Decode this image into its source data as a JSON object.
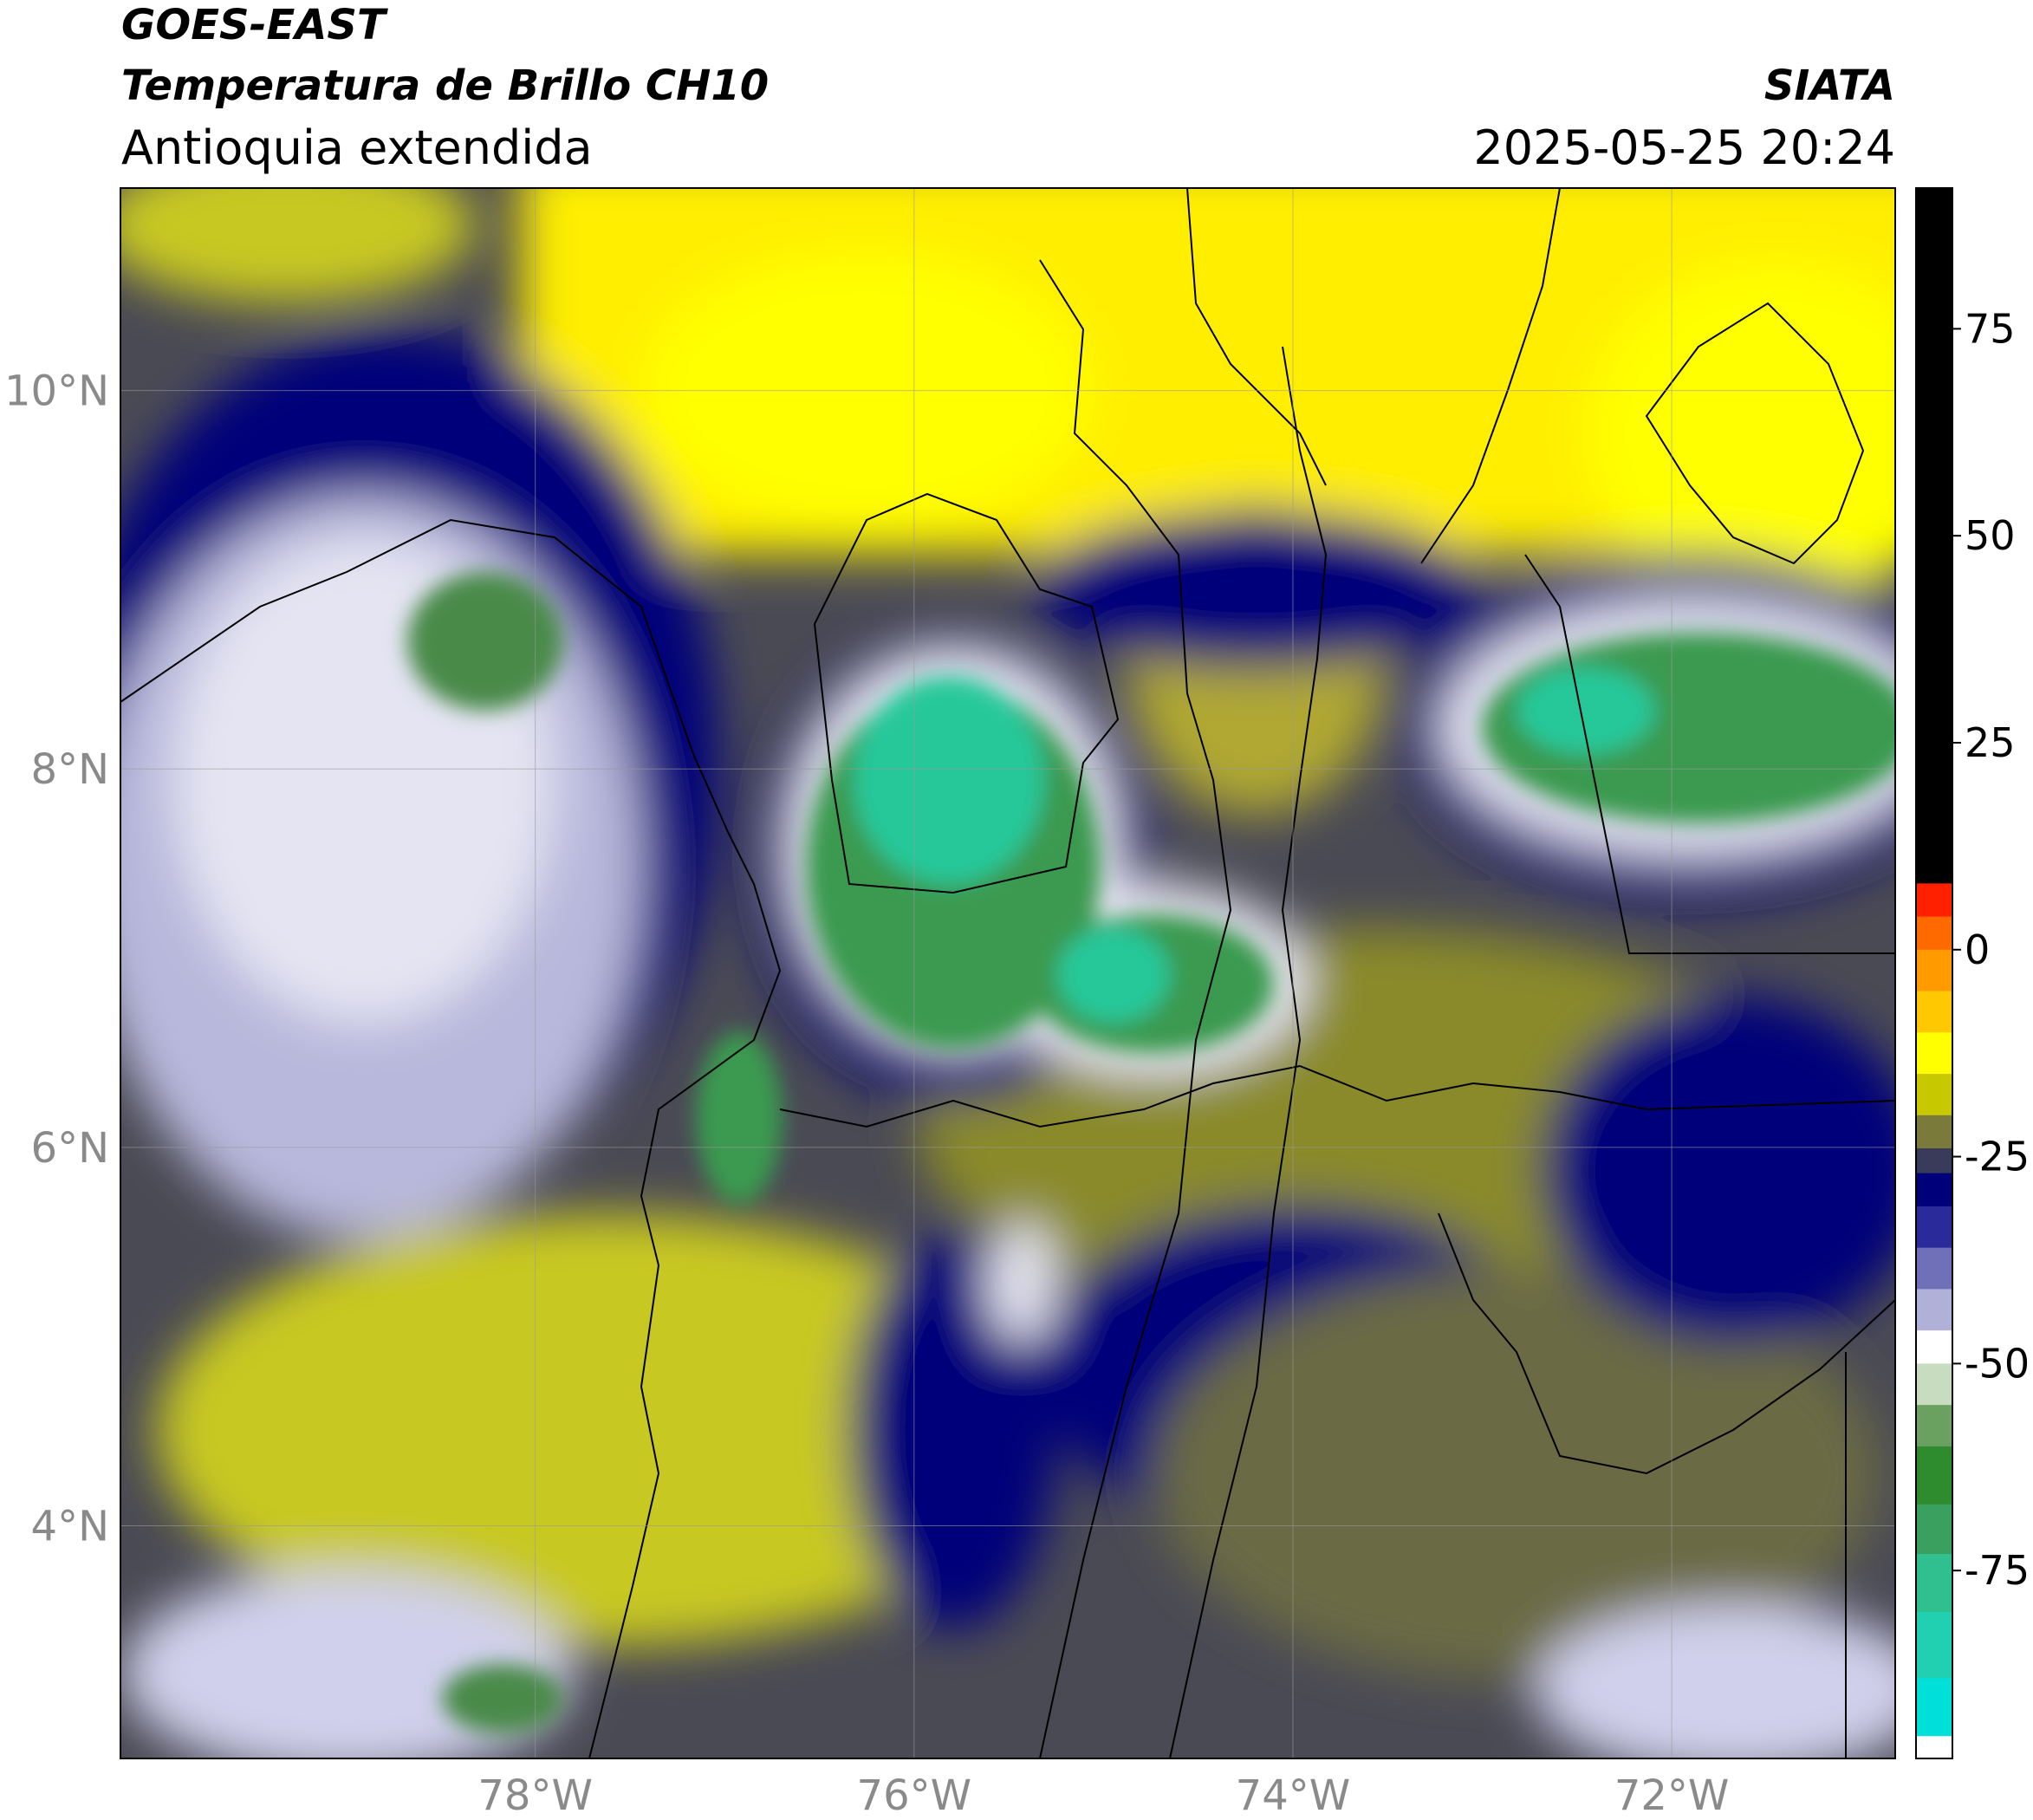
{
  "header": {
    "title_line1": "GOES-EAST",
    "title_line2": "Temperatura de Brillo CH10",
    "subtitle": "Antioquia extendida",
    "agency": "SIATA",
    "datetime": "2025-05-25 20:24"
  },
  "map": {
    "xlim": [
      -80.19,
      -70.82
    ],
    "ylim": [
      2.77,
      11.07
    ],
    "xticks": [
      {
        "value": -78,
        "label": "78°W"
      },
      {
        "value": -76,
        "label": "76°W"
      },
      {
        "value": -74,
        "label": "74°W"
      },
      {
        "value": -72,
        "label": "72°W"
      }
    ],
    "yticks": [
      {
        "value": 4,
        "label": "4°N"
      },
      {
        "value": 6,
        "label": "6°N"
      },
      {
        "value": 8,
        "label": "8°N"
      },
      {
        "value": 10,
        "label": "10°N"
      }
    ],
    "grid": true
  },
  "colorbar": {
    "lim": [
      -97.7,
      92
    ],
    "ticks": [
      75,
      50,
      25,
      0,
      -25,
      -50,
      -75
    ],
    "bands": [
      {
        "range": [
          8,
          92
        ],
        "color": "#000000"
      },
      {
        "range": [
          4,
          8
        ],
        "color": "#ff2000"
      },
      {
        "range": [
          0,
          4
        ],
        "color": "#ff6a00"
      },
      {
        "range": [
          -5,
          0
        ],
        "color": "#ff9a00"
      },
      {
        "range": [
          -10,
          -5
        ],
        "color": "#ffc800"
      },
      {
        "range": [
          -15,
          -10
        ],
        "color": "#ffff00"
      },
      {
        "range": [
          -20,
          -15
        ],
        "color": "#c8c800"
      },
      {
        "range": [
          -24,
          -20
        ],
        "color": "#7a7a3a"
      },
      {
        "range": [
          -27,
          -24
        ],
        "color": "#3a3a5a"
      },
      {
        "range": [
          -31,
          -27
        ],
        "color": "#00007a"
      },
      {
        "range": [
          -36,
          -31
        ],
        "color": "#2a2a9a"
      },
      {
        "range": [
          -41,
          -36
        ],
        "color": "#7070b8"
      },
      {
        "range": [
          -46,
          -41
        ],
        "color": "#b0b0d8"
      },
      {
        "range": [
          -50,
          -46
        ],
        "color": "#ffffff"
      },
      {
        "range": [
          -55,
          -50
        ],
        "color": "#c8dcc0"
      },
      {
        "range": [
          -60,
          -55
        ],
        "color": "#6aa060"
      },
      {
        "range": [
          -67,
          -60
        ],
        "color": "#2e8b2e"
      },
      {
        "range": [
          -73,
          -67
        ],
        "color": "#3aa060"
      },
      {
        "range": [
          -80,
          -73
        ],
        "color": "#30c090"
      },
      {
        "range": [
          -88,
          -80
        ],
        "color": "#20d0b0"
      },
      {
        "range": [
          -95,
          -88
        ],
        "color": "#00e0d8"
      },
      {
        "range": [
          -97.7,
          -95
        ],
        "color": "#ffffff"
      }
    ]
  }
}
